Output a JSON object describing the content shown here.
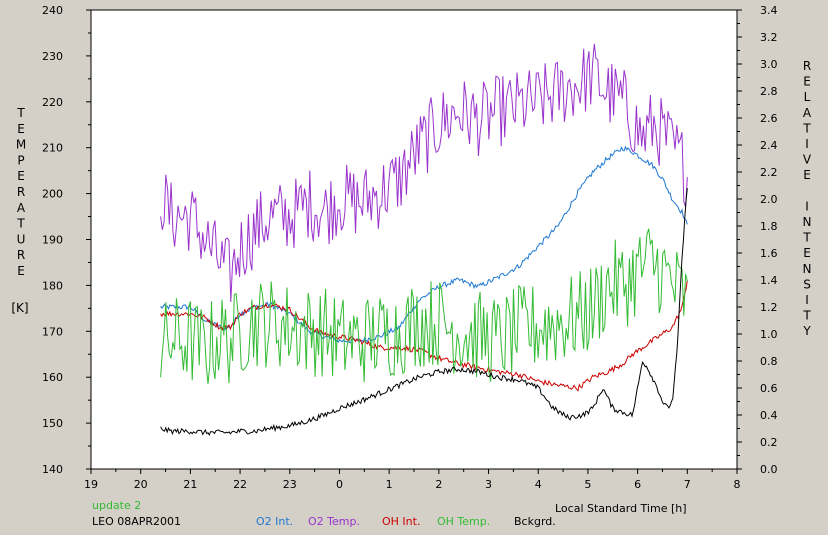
{
  "chart_data": {
    "type": "line",
    "title": "",
    "xlabel": "Local Standard Time [h]",
    "ylabel_left_letters": [
      "T",
      "E",
      "M",
      "P",
      "E",
      "R",
      "A",
      "T",
      "U",
      "R",
      "E"
    ],
    "ylabel_left_unit": "[K]",
    "ylabel_right_letters": [
      "R",
      "E",
      "L",
      "A",
      "T",
      "I",
      "V",
      "E",
      "",
      "I",
      "N",
      "T",
      "E",
      "N",
      "S",
      "I",
      "T",
      "Y"
    ],
    "xlim": [
      19,
      32
    ],
    "x_tick_values": [
      19,
      20,
      21,
      22,
      23,
      24,
      25,
      26,
      27,
      28,
      29,
      30,
      31,
      32
    ],
    "x_tick_labels": [
      "19",
      "20",
      "21",
      "22",
      "23",
      "0",
      "1",
      "2",
      "3",
      "4",
      "5",
      "6",
      "7",
      "8"
    ],
    "ylim_left": [
      140,
      240
    ],
    "y_left_ticks": [
      "140",
      "150",
      "160",
      "170",
      "180",
      "190",
      "200",
      "210",
      "220",
      "230",
      "240"
    ],
    "ylim_right": [
      0.0,
      3.4
    ],
    "y_right_ticks": [
      "0.0",
      "0.2",
      "0.4",
      "0.6",
      "0.8",
      "1.0",
      "1.2",
      "1.4",
      "1.6",
      "1.8",
      "2.0",
      "2.2",
      "2.4",
      "2.6",
      "2.8",
      "3.0",
      "3.2",
      "3.4"
    ],
    "grid": false,
    "series": [
      {
        "name": "O2 Int.",
        "axis": "right",
        "color": "#1e78d2",
        "style": "smooth",
        "x": [
          20.4,
          20.6,
          21.0,
          21.3,
          21.6,
          21.8,
          22.0,
          22.3,
          22.6,
          23.0,
          23.4,
          23.7,
          24.0,
          24.4,
          24.8,
          25.2,
          25.6,
          26.0,
          26.4,
          26.8,
          27.2,
          27.6,
          28.0,
          28.4,
          28.8,
          29.1,
          29.4,
          29.7,
          29.9,
          30.1,
          30.3,
          30.5,
          30.7,
          30.9,
          31.0
        ],
        "y": [
          1.2,
          1.2,
          1.2,
          1.1,
          1.05,
          1.05,
          1.15,
          1.2,
          1.22,
          1.15,
          1.02,
          0.98,
          0.95,
          0.95,
          0.98,
          1.05,
          1.25,
          1.35,
          1.4,
          1.35,
          1.42,
          1.5,
          1.65,
          1.8,
          2.05,
          2.2,
          2.3,
          2.38,
          2.35,
          2.3,
          2.25,
          2.15,
          2.0,
          1.9,
          1.8
        ]
      },
      {
        "name": "O2 Temp.",
        "axis": "left",
        "color": "#9933cc",
        "style": "noisy",
        "noise": 8,
        "x": [
          20.4,
          20.6,
          21.0,
          21.3,
          21.6,
          21.8,
          22.0,
          22.3,
          22.6,
          23.0,
          23.4,
          23.7,
          24.0,
          24.4,
          24.8,
          25.2,
          25.6,
          26.0,
          26.4,
          26.8,
          27.2,
          27.6,
          28.0,
          28.4,
          28.8,
          29.1,
          29.4,
          29.7,
          29.9,
          30.1,
          30.3,
          30.5,
          30.7,
          30.9,
          31.0
        ],
        "y": [
          200,
          195,
          195,
          190,
          185,
          182,
          188,
          192,
          195,
          195,
          198,
          196,
          199,
          198,
          200,
          203,
          210,
          215,
          218,
          216,
          218,
          219,
          220,
          222,
          224,
          226,
          222,
          220,
          216,
          212,
          215,
          213,
          210,
          207,
          204
        ]
      },
      {
        "name": "OH Int.",
        "axis": "right",
        "color": "#cc0000",
        "style": "smooth",
        "x": [
          20.4,
          20.6,
          21.0,
          21.3,
          21.6,
          21.8,
          22.0,
          22.3,
          22.6,
          23.0,
          23.4,
          23.7,
          24.0,
          24.4,
          24.8,
          25.2,
          25.6,
          26.0,
          26.4,
          26.8,
          27.2,
          27.6,
          28.0,
          28.4,
          28.8,
          29.1,
          29.4,
          29.7,
          29.9,
          30.1,
          30.3,
          30.5,
          30.7,
          30.9,
          31.0
        ],
        "y": [
          1.15,
          1.15,
          1.15,
          1.12,
          1.05,
          1.05,
          1.15,
          1.2,
          1.22,
          1.18,
          1.05,
          1.0,
          0.98,
          0.95,
          0.9,
          0.9,
          0.88,
          0.82,
          0.78,
          0.75,
          0.72,
          0.7,
          0.65,
          0.62,
          0.6,
          0.68,
          0.72,
          0.78,
          0.85,
          0.9,
          0.95,
          1.0,
          1.05,
          1.2,
          1.4
        ]
      },
      {
        "name": "OH Temp.",
        "axis": "left",
        "color": "#33bb33",
        "style": "noisy",
        "noise": 10,
        "x": [
          20.4,
          20.6,
          21.0,
          21.3,
          21.6,
          21.8,
          22.0,
          22.3,
          22.6,
          23.0,
          23.4,
          23.7,
          24.0,
          24.4,
          24.8,
          25.2,
          25.6,
          26.0,
          26.4,
          26.8,
          27.2,
          27.6,
          28.0,
          28.4,
          28.8,
          29.1,
          29.4,
          29.7,
          29.9,
          30.1,
          30.3,
          30.5,
          30.7,
          30.9,
          31.0
        ],
        "y": [
          166,
          168,
          168,
          166,
          169,
          168,
          170,
          172,
          172,
          171,
          170,
          170,
          168,
          168,
          169,
          170,
          172,
          172,
          170,
          169,
          168,
          170,
          171,
          172,
          173,
          175,
          180,
          180,
          182,
          184,
          185,
          183,
          180,
          178,
          176
        ]
      },
      {
        "name": "Bckgrd.",
        "axis": "right",
        "color": "#000000",
        "style": "smooth",
        "x": [
          20.4,
          20.6,
          21.0,
          21.3,
          21.6,
          21.8,
          22.0,
          22.3,
          22.6,
          23.0,
          23.4,
          23.7,
          24.0,
          24.4,
          24.8,
          25.2,
          25.6,
          26.0,
          26.4,
          26.8,
          27.2,
          27.6,
          28.0,
          28.3,
          28.6,
          28.9,
          29.1,
          29.3,
          29.5,
          29.7,
          29.9,
          30.0,
          30.1,
          30.2,
          30.4,
          30.5,
          30.6,
          30.7,
          30.8,
          30.9,
          31.0
        ],
        "y": [
          0.3,
          0.28,
          0.28,
          0.27,
          0.27,
          0.27,
          0.28,
          0.28,
          0.3,
          0.32,
          0.36,
          0.4,
          0.45,
          0.5,
          0.56,
          0.62,
          0.68,
          0.72,
          0.74,
          0.72,
          0.68,
          0.66,
          0.6,
          0.45,
          0.38,
          0.4,
          0.45,
          0.6,
          0.45,
          0.42,
          0.4,
          0.6,
          0.8,
          0.75,
          0.6,
          0.5,
          0.45,
          0.5,
          0.9,
          1.6,
          2.1
        ]
      }
    ]
  },
  "footer": {
    "update_text": "update 2",
    "station_text": "LEO 08APR2001",
    "legend": [
      {
        "label": "O2 Int.",
        "color": "#1e78d2"
      },
      {
        "label": "O2 Temp.",
        "color": "#9933cc"
      },
      {
        "label": "OH Int.",
        "color": "#cc0000"
      },
      {
        "label": "OH Temp.",
        "color": "#33bb33"
      },
      {
        "label": "Bckgrd.",
        "color": "#000000"
      }
    ]
  }
}
